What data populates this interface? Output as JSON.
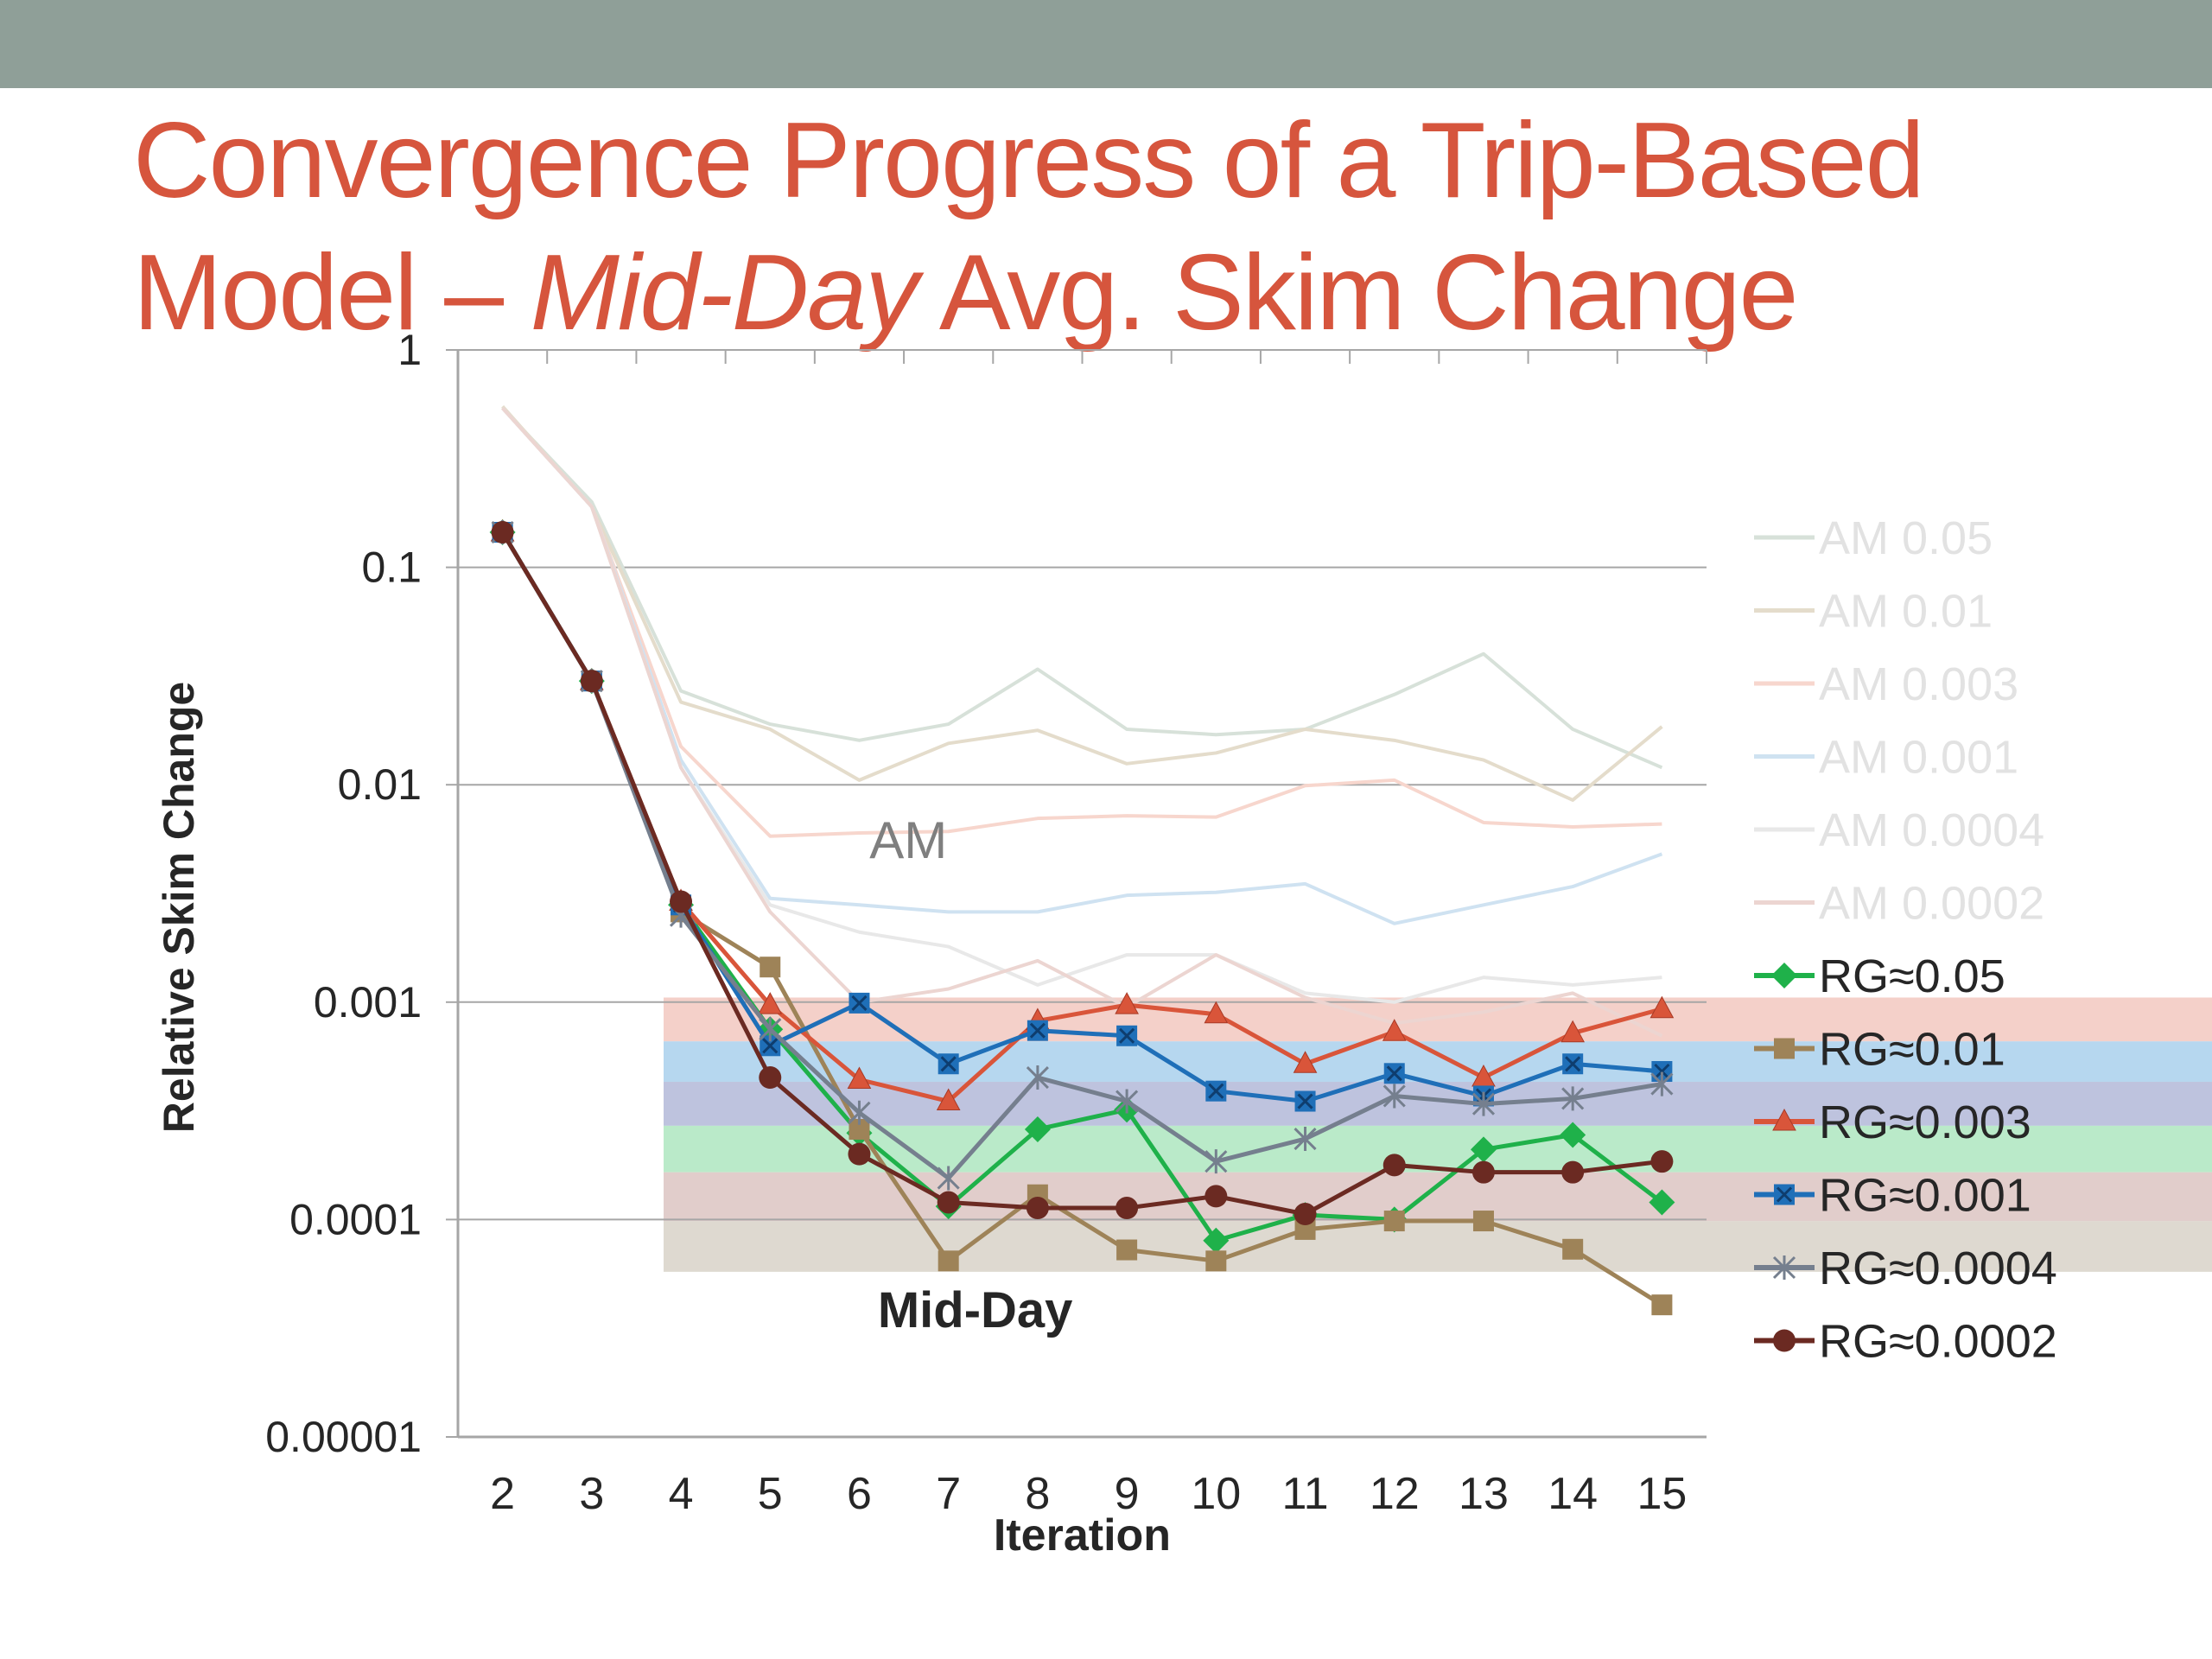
{
  "slide": {
    "title_line1": "Convergence Progress of a Trip-Based",
    "title_line2_prefix": "Model – ",
    "title_line2_italic": "Mid-Day",
    "title_line2_suffix": " Avg. Skim Change",
    "title_color": "#d6553d",
    "header_bar_color": "#8f9f98"
  },
  "chart_data": {
    "type": "line",
    "xlabel": "Iteration",
    "ylabel": "Relative Skim Change",
    "y_scale": "log",
    "ylim": [
      1e-05,
      1
    ],
    "y_ticks": [
      {
        "value": 1,
        "label": "1"
      },
      {
        "value": 0.1,
        "label": "0.1"
      },
      {
        "value": 0.01,
        "label": "0.01"
      },
      {
        "value": 0.001,
        "label": "0.001"
      },
      {
        "value": 0.0001,
        "label": "0.0001"
      },
      {
        "value": 1e-05,
        "label": "0.00001"
      }
    ],
    "x": [
      2,
      3,
      4,
      5,
      6,
      7,
      8,
      9,
      10,
      11,
      12,
      13,
      14,
      15
    ],
    "grid": "horizontal",
    "legend_position": "right",
    "annotations": [
      {
        "text": "AM",
        "x": 6.55,
        "y": 0.0046,
        "bold": false,
        "color": "#7f7f7f"
      },
      {
        "text": "Mid-Day",
        "x": 7.3,
        "y": 3.2e-05,
        "bold": true,
        "color": "#262626"
      }
    ],
    "bands": [
      {
        "from": 0.00066,
        "to": 0.00105,
        "color": "#f2c8c0"
      },
      {
        "from": 0.00043,
        "to": 0.00066,
        "color": "#a9d0ec"
      },
      {
        "from": 0.00027,
        "to": 0.00043,
        "color": "#b3b9d8"
      },
      {
        "from": 0.000165,
        "to": 0.00027,
        "color": "#aee6c0"
      },
      {
        "from": 9.85e-05,
        "to": 0.000165,
        "color": "#dcc4c2"
      },
      {
        "from": 5.75e-05,
        "to": 9.85e-05,
        "color": "#d8d2c8"
      }
    ],
    "series": [
      {
        "name": "AM 0.05",
        "color": "#d7e1d9",
        "marker": "none",
        "faded": true,
        "values": [
          0.54,
          0.2,
          0.027,
          0.019,
          0.016,
          0.019,
          0.034,
          0.018,
          0.017,
          0.018,
          0.026,
          0.04,
          0.018,
          0.012
        ]
      },
      {
        "name": "AM 0.01",
        "color": "#e4dccb",
        "marker": "none",
        "faded": true,
        "values": [
          0.55,
          0.19,
          0.024,
          0.018,
          0.0105,
          0.0155,
          0.0178,
          0.0125,
          0.014,
          0.018,
          0.016,
          0.013,
          0.0085,
          0.0185
        ]
      },
      {
        "name": "AM 0.003",
        "color": "#f7d6cd",
        "marker": "none",
        "faded": true,
        "values": [
          0.54,
          0.19,
          0.015,
          0.0058,
          0.006,
          0.0061,
          0.007,
          0.0072,
          0.0071,
          0.0099,
          0.0105,
          0.0067,
          0.0064,
          0.0066
        ]
      },
      {
        "name": "AM 0.001",
        "color": "#cfe2f1",
        "marker": "none",
        "faded": true,
        "values": [
          0.54,
          0.19,
          0.013,
          0.003,
          0.0028,
          0.0026,
          0.0026,
          0.0031,
          0.0032,
          0.0035,
          0.0023,
          0.0028,
          0.0034,
          0.0048
        ]
      },
      {
        "name": "AM 0.0004",
        "color": "#e8e8e8",
        "marker": "none",
        "faded": true,
        "values": [
          0.54,
          0.19,
          0.012,
          0.0028,
          0.0021,
          0.0018,
          0.0012,
          0.00165,
          0.00165,
          0.0011,
          0.001,
          0.0013,
          0.0012,
          0.0013
        ]
      },
      {
        "name": "AM 0.0002",
        "color": "#ecd5d1",
        "marker": "none",
        "faded": true,
        "values": [
          0.54,
          0.19,
          0.012,
          0.0026,
          0.001,
          0.00115,
          0.00155,
          0.00095,
          0.00165,
          0.00105,
          0.0008,
          0.0009,
          0.0011,
          0.0007
        ]
      },
      {
        "name": "RG≈0.05",
        "color": "#1fb14a",
        "marker": "diamond",
        "faded": false,
        "values": [
          0.145,
          0.03,
          0.0028,
          0.00075,
          0.00025,
          0.000115,
          0.00026,
          0.00032,
          8e-05,
          0.000105,
          0.0001,
          0.00021,
          0.000245,
          0.00012
        ]
      },
      {
        "name": "RG≈0.01",
        "color": "#9e8358",
        "marker": "square",
        "faded": false,
        "values": [
          0.145,
          0.03,
          0.0026,
          0.00145,
          0.00026,
          6.45e-05,
          0.00013,
          7.25e-05,
          6.45e-05,
          9e-05,
          9.85e-05,
          9.85e-05,
          7.3e-05,
          4.05e-05
        ]
      },
      {
        "name": "RG≈0.003",
        "color": "#d9553a",
        "marker": "triangle",
        "faded": false,
        "values": [
          0.145,
          0.03,
          0.0029,
          0.00097,
          0.00044,
          0.00035,
          0.00082,
          0.00097,
          0.00088,
          0.00052,
          0.00073,
          0.00045,
          0.00072,
          0.00093
        ]
      },
      {
        "name": "RG≈0.001",
        "color": "#1f6fb8",
        "marker": "xsquare",
        "faded": false,
        "values": [
          0.145,
          0.03,
          0.0028,
          0.00063,
          0.00099,
          0.00052,
          0.00074,
          0.0007,
          0.00039,
          0.00035,
          0.00047,
          0.00037,
          0.00052,
          0.00048
        ]
      },
      {
        "name": "RG≈0.0004",
        "color": "#757f8e",
        "marker": "star",
        "faded": false,
        "values": [
          0.145,
          0.03,
          0.0025,
          0.00075,
          0.00031,
          0.000155,
          0.00045,
          0.00035,
          0.000185,
          0.000235,
          0.00037,
          0.00034,
          0.00036,
          0.00042
        ]
      },
      {
        "name": "RG≈0.0002",
        "color": "#6b2a22",
        "marker": "circle",
        "faded": false,
        "values": [
          0.145,
          0.03,
          0.0029,
          0.00045,
          0.0002,
          0.00012,
          0.000113,
          0.000113,
          0.000128,
          0.000106,
          0.000178,
          0.000165,
          0.000165,
          0.000185
        ]
      }
    ]
  }
}
